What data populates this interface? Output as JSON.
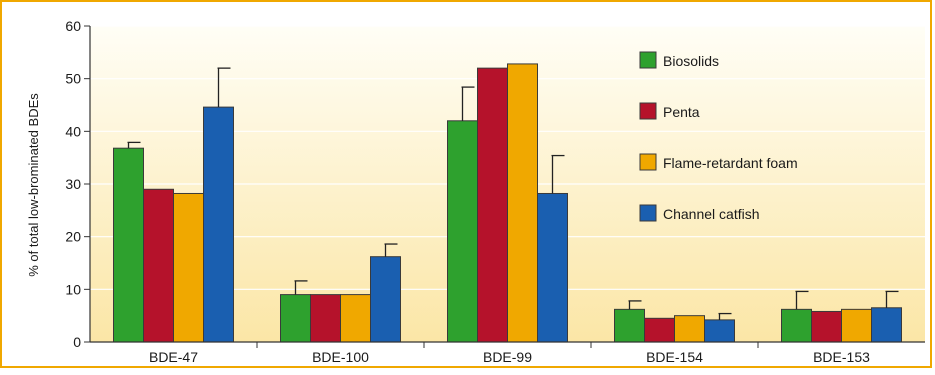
{
  "chart_data": {
    "type": "bar",
    "title": "",
    "xlabel": "",
    "ylabel": "% of total low-brominated BDEs",
    "ylim": [
      0,
      60
    ],
    "yticks": [
      0,
      10,
      20,
      30,
      40,
      50,
      60
    ],
    "grid": true,
    "legend_position": "top-right",
    "categories": [
      "BDE-47",
      "BDE-100",
      "BDE-99",
      "BDE-154",
      "BDE-153"
    ],
    "series": [
      {
        "name": "Biosolids",
        "color": "#2ea12e",
        "values": [
          36.8,
          9.0,
          42.0,
          6.2,
          6.2
        ],
        "error_upper": [
          37.9,
          11.6,
          48.4,
          7.8,
          9.6
        ]
      },
      {
        "name": "Penta",
        "color": "#b5122b",
        "values": [
          29.0,
          9.0,
          52.0,
          4.5,
          5.8
        ],
        "error_upper": [
          null,
          null,
          null,
          null,
          null
        ]
      },
      {
        "name": "Flame-retardant foam",
        "color": "#f0a800",
        "values": [
          28.2,
          9.0,
          52.8,
          5.0,
          6.2
        ],
        "error_upper": [
          null,
          null,
          null,
          null,
          null
        ]
      },
      {
        "name": "Channel catfish",
        "color": "#1a5fb0",
        "values": [
          44.6,
          16.2,
          28.2,
          4.2,
          6.5
        ],
        "error_upper": [
          52.0,
          18.6,
          35.4,
          5.4,
          9.6
        ]
      }
    ],
    "frame_color": "#f0a800"
  }
}
